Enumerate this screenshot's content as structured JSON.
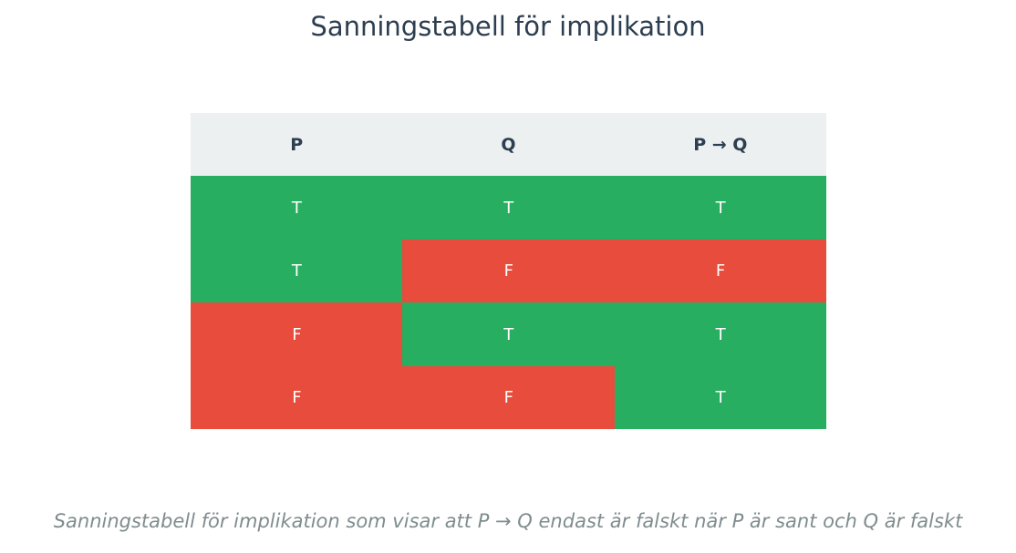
{
  "chart_data": {
    "type": "table",
    "title": "Sanningstabell för implikation",
    "columns": [
      "P",
      "Q",
      "P → Q"
    ],
    "rows": [
      [
        "T",
        "T",
        "T"
      ],
      [
        "T",
        "F",
        "F"
      ],
      [
        "F",
        "T",
        "T"
      ],
      [
        "F",
        "F",
        "T"
      ]
    ],
    "caption": "Sanningstabell för implikation som visar att P → Q endast är falskt när P är sant och Q är falskt",
    "colors": {
      "true": "#27ae60",
      "false": "#e74c3c",
      "header_bg": "#ecf0f1",
      "header_text": "#2c3e50",
      "cell_text": "#ffffff"
    }
  }
}
